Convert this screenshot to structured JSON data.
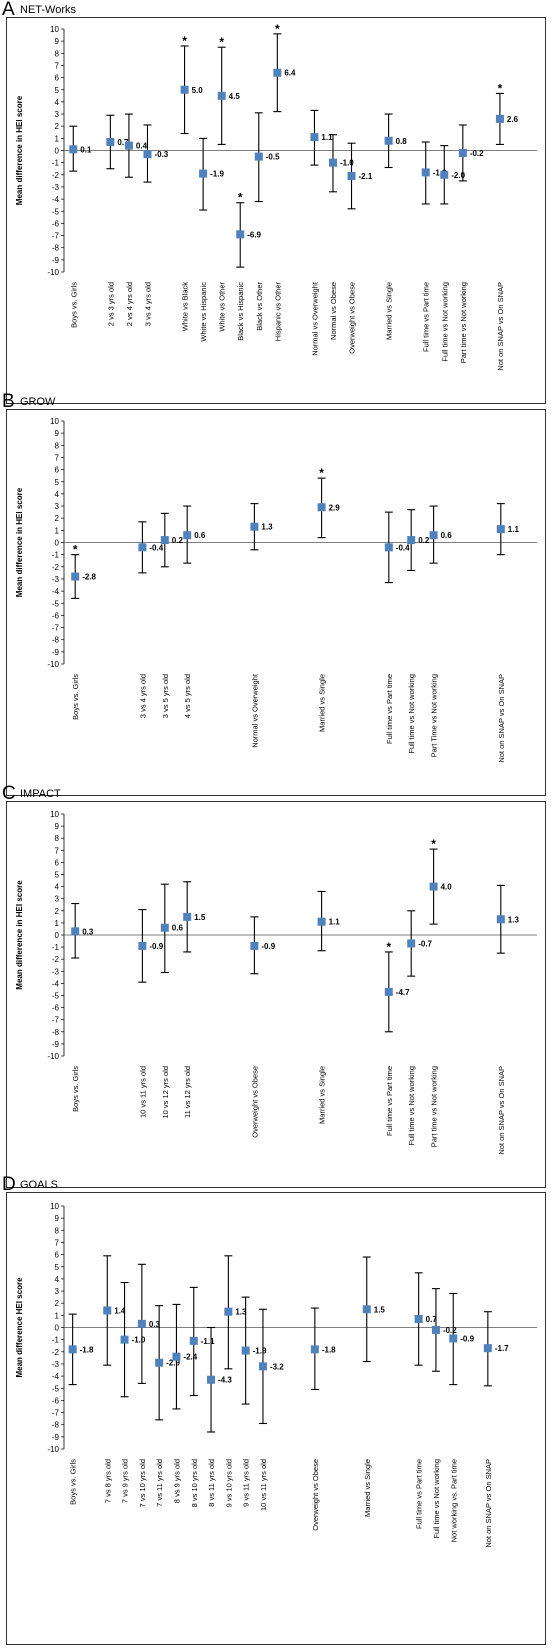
{
  "chart_data": [
    {
      "type": "scatter",
      "letter": "A",
      "title": "NET-Works",
      "ylabel": "Mean difference in HEI score",
      "ylim": [
        -10,
        10
      ],
      "yticks": [
        10,
        9,
        8,
        7,
        6,
        5,
        4,
        3,
        2,
        1,
        0,
        -1,
        -2,
        -3,
        -4,
        -5,
        -6,
        -7,
        -8,
        -9,
        -10
      ],
      "marker_color": "#4F81BD",
      "points": [
        {
          "category": "Boys vs. Girls",
          "x": 1,
          "value": 0.1,
          "label": "0.1",
          "ci": [
            -1.7,
            2.0
          ],
          "sig": false
        },
        {
          "category": "2 vs 3 yrs old",
          "x": 3,
          "value": 0.7,
          "label": "0.7",
          "ci": [
            -1.5,
            2.9
          ],
          "sig": false
        },
        {
          "category": "2 vs 4 yrs old",
          "x": 4,
          "value": 0.4,
          "label": "0.4",
          "ci": [
            -2.2,
            3.0
          ],
          "sig": false
        },
        {
          "category": "3 vs 4 yrs old",
          "x": 5,
          "value": -0.3,
          "label": "-0.3",
          "ci": [
            -2.6,
            2.1
          ],
          "sig": false
        },
        {
          "category": "White vs Black",
          "x": 7,
          "value": 5.0,
          "label": "5.0",
          "ci": [
            1.4,
            8.6
          ],
          "sig": true
        },
        {
          "category": "White vs Hispanic",
          "x": 8,
          "value": -1.9,
          "label": "-1.9",
          "ci": [
            -4.9,
            1.0
          ],
          "sig": false
        },
        {
          "category": "White vs Other",
          "x": 9,
          "value": 4.5,
          "label": "4.5",
          "ci": [
            0.5,
            8.5
          ],
          "sig": true
        },
        {
          "category": "Black vs Hispanic",
          "x": 10,
          "value": -6.9,
          "label": "-6.9",
          "ci": [
            -9.6,
            -4.3
          ],
          "sig": true
        },
        {
          "category": "Black vs Other",
          "x": 11,
          "value": -0.5,
          "label": "-0.5",
          "ci": [
            -4.2,
            3.1
          ],
          "sig": false
        },
        {
          "category": "Hispanic vs Other",
          "x": 12,
          "value": 6.4,
          "label": "6.4",
          "ci": [
            3.2,
            9.6
          ],
          "sig": true
        },
        {
          "category": "Normal vs Overweight",
          "x": 14,
          "value": 1.1,
          "label": "1.1",
          "ci": [
            -1.2,
            3.3
          ],
          "sig": false
        },
        {
          "category": "Normal vs Obese",
          "x": 15,
          "value": -1.0,
          "label": "-1.0",
          "ci": [
            -3.4,
            1.3
          ],
          "sig": false
        },
        {
          "category": "Overweight vs Obese",
          "x": 16,
          "value": -2.1,
          "label": "-2.1",
          "ci": [
            -4.8,
            0.6
          ],
          "sig": false
        },
        {
          "category": "Married vs Single",
          "x": 18,
          "value": 0.8,
          "label": "0.8",
          "ci": [
            -1.4,
            3.0
          ],
          "sig": false
        },
        {
          "category": "Full time vs Part time",
          "x": 20,
          "value": -1.8,
          "label": "-1.8",
          "ci": [
            -4.4,
            0.7
          ],
          "sig": false
        },
        {
          "category": "Full time vs Not working",
          "x": 21,
          "value": -2.0,
          "label": "-2.0",
          "ci": [
            -4.4,
            0.4
          ],
          "sig": false
        },
        {
          "category": "Part time vs Not working",
          "x": 22,
          "value": -0.2,
          "label": "-0.2",
          "ci": [
            -2.5,
            2.1
          ],
          "sig": false
        },
        {
          "category": "Not on SNAP vs On SNAP",
          "x": 24,
          "value": 2.6,
          "label": "2.6",
          "ci": [
            0.5,
            4.7
          ],
          "sig": true
        }
      ]
    },
    {
      "type": "scatter",
      "letter": "B",
      "title": "GROW",
      "ylabel": "Mean difference in HEI score",
      "ylim": [
        -10,
        10
      ],
      "yticks": [
        10,
        9,
        8,
        7,
        6,
        5,
        4,
        3,
        2,
        1,
        0,
        -1,
        -2,
        -3,
        -4,
        -5,
        -6,
        -7,
        -8,
        -9,
        -10
      ],
      "marker_color": "#4F81BD",
      "points": [
        {
          "category": "Boys vs. Girls",
          "x": 1,
          "value": -2.8,
          "label": "-2.8",
          "ci": [
            -4.6,
            -1.0
          ],
          "sig": true
        },
        {
          "category": "3 vs 4 yrs old",
          "x": 4,
          "value": -0.4,
          "label": "-0.4",
          "ci": [
            -2.5,
            1.7
          ],
          "sig": false
        },
        {
          "category": "3 vs 5 yrs old",
          "x": 5,
          "value": 0.2,
          "label": "0.2",
          "ci": [
            -2.0,
            2.4
          ],
          "sig": false
        },
        {
          "category": "4 vs 5 yrs old",
          "x": 6,
          "value": 0.6,
          "label": "0.6",
          "ci": [
            -1.7,
            3.0
          ],
          "sig": false
        },
        {
          "category": "Normal vs Overweight",
          "x": 9,
          "value": 1.3,
          "label": "1.3",
          "ci": [
            -0.6,
            3.2
          ],
          "sig": false
        },
        {
          "category": "Married vs Single",
          "x": 12,
          "value": 2.9,
          "label": "2.9",
          "ci": [
            0.4,
            5.3
          ],
          "sig": true
        },
        {
          "category": "Full time vs Part time",
          "x": 15,
          "value": -0.4,
          "label": "-0.4",
          "ci": [
            -3.3,
            2.5
          ],
          "sig": false
        },
        {
          "category": "Full time vs Not working",
          "x": 16,
          "value": 0.2,
          "label": "0.2",
          "ci": [
            -2.3,
            2.7
          ],
          "sig": false
        },
        {
          "category": "Part Time vs Not working",
          "x": 17,
          "value": 0.6,
          "label": "0.6",
          "ci": [
            -1.7,
            3.0
          ],
          "sig": false
        },
        {
          "category": "Not on SNAP vs On SNAP",
          "x": 20,
          "value": 1.1,
          "label": "1.1",
          "ci": [
            -1.0,
            3.2
          ],
          "sig": false
        }
      ]
    },
    {
      "type": "scatter",
      "letter": "C",
      "title": "IMPACT",
      "ylabel": "Mean difference in HEI score",
      "ylim": [
        -10,
        10
      ],
      "yticks": [
        10,
        9,
        8,
        7,
        6,
        5,
        4,
        3,
        2,
        1,
        0,
        -1,
        -2,
        -3,
        -4,
        -5,
        -6,
        -7,
        -8,
        -9,
        -10
      ],
      "marker_color": "#4F81BD",
      "points": [
        {
          "category": "Boys vs. Girls",
          "x": 1,
          "value": 0.3,
          "label": "0.3",
          "ci": [
            -1.9,
            2.6
          ],
          "sig": false
        },
        {
          "category": "10 vs 11 yrs old",
          "x": 4,
          "value": -0.9,
          "label": "-0.9",
          "ci": [
            -3.9,
            2.1
          ],
          "sig": false
        },
        {
          "category": "10 vs 12 yrs old",
          "x": 5,
          "value": 0.6,
          "label": "0.6",
          "ci": [
            -3.1,
            4.2
          ],
          "sig": false
        },
        {
          "category": "11 vs 12 yrs old",
          "x": 6,
          "value": 1.5,
          "label": "1.5",
          "ci": [
            -1.4,
            4.4
          ],
          "sig": false
        },
        {
          "category": "Overweight vs Obese",
          "x": 9,
          "value": -0.9,
          "label": "-0.9",
          "ci": [
            -3.2,
            1.5
          ],
          "sig": false
        },
        {
          "category": "Married vs Single",
          "x": 12,
          "value": 1.1,
          "label": "1.1",
          "ci": [
            -1.3,
            3.6
          ],
          "sig": false
        },
        {
          "category": "Full time vs Part time",
          "x": 15,
          "value": -4.7,
          "label": "-4.7",
          "ci": [
            -8.0,
            -1.4
          ],
          "sig": true
        },
        {
          "category": "Full time vs Not working",
          "x": 16,
          "value": -0.7,
          "label": "-0.7",
          "ci": [
            -3.4,
            2.0
          ],
          "sig": false
        },
        {
          "category": "Part time vs Not working",
          "x": 17,
          "value": 4.0,
          "label": "4.0",
          "ci": [
            0.9,
            7.1
          ],
          "sig": true
        },
        {
          "category": "Not on SNAP vs On SNAP",
          "x": 20,
          "value": 1.3,
          "label": "1.3",
          "ci": [
            -1.5,
            4.1
          ],
          "sig": false
        }
      ]
    },
    {
      "type": "scatter",
      "letter": "D",
      "title": "GOALS",
      "ylabel": "Mean difference HEI score",
      "ylim": [
        -10,
        10
      ],
      "yticks": [
        10,
        9,
        8,
        7,
        6,
        5,
        4,
        3,
        2,
        1,
        0,
        -1,
        -2,
        -3,
        -4,
        -5,
        -6,
        -7,
        -8,
        -9,
        -10
      ],
      "marker_color": "#4F81BD",
      "points": [
        {
          "category": "Boys vs. Girls",
          "x": 1,
          "value": -1.8,
          "label": "-1.8",
          "ci": [
            -4.7,
            1.1
          ],
          "sig": false
        },
        {
          "category": "7 vs 8 yrs old",
          "x": 3,
          "value": 1.4,
          "label": "1.4",
          "ci": [
            -3.1,
            5.9
          ],
          "sig": false
        },
        {
          "category": "7 vs 9 yrs old",
          "x": 4,
          "value": -1.0,
          "label": "-1.0",
          "ci": [
            -5.7,
            3.7
          ],
          "sig": false
        },
        {
          "category": "7 vs 10 yrs old",
          "x": 5,
          "value": 0.3,
          "label": "0.3",
          "ci": [
            -4.6,
            5.2
          ],
          "sig": false
        },
        {
          "category": "7 vs 11 yrs old",
          "x": 6,
          "value": -2.9,
          "label": "-2.9",
          "ci": [
            -7.6,
            1.8
          ],
          "sig": false
        },
        {
          "category": "8 vs 9 yrs old",
          "x": 7,
          "value": -2.4,
          "label": "-2.4",
          "ci": [
            -6.7,
            1.9
          ],
          "sig": false
        },
        {
          "category": "8 vs 10 yrs old",
          "x": 8,
          "value": -1.1,
          "label": "-1.1",
          "ci": [
            -5.6,
            3.3
          ],
          "sig": false
        },
        {
          "category": "8 vs 11 yrs old",
          "x": 9,
          "value": -4.3,
          "label": "-4.3",
          "ci": [
            -8.6,
            0.0
          ],
          "sig": false
        },
        {
          "category": "9 vs 10 yrs old",
          "x": 10,
          "value": 1.3,
          "label": "1.3",
          "ci": [
            -3.4,
            5.9
          ],
          "sig": false
        },
        {
          "category": "9 vs 11 yrs old",
          "x": 11,
          "value": -1.9,
          "label": "-1.9",
          "ci": [
            -6.3,
            2.5
          ],
          "sig": false
        },
        {
          "category": "10 vs 11 yrs old",
          "x": 12,
          "value": -3.2,
          "label": "-3.2",
          "ci": [
            -7.9,
            1.5
          ],
          "sig": false
        },
        {
          "category": "Overweight vs Obese",
          "x": 15,
          "value": -1.8,
          "label": "-1.8",
          "ci": [
            -5.1,
            1.6
          ],
          "sig": false
        },
        {
          "category": "Married vs Single",
          "x": 18,
          "value": 1.5,
          "label": "1.5",
          "ci": [
            -2.8,
            5.8
          ],
          "sig": false
        },
        {
          "category": "Full time vs Part time",
          "x": 21,
          "value": 0.7,
          "label": "0.7",
          "ci": [
            -3.1,
            4.5
          ],
          "sig": false
        },
        {
          "category": "Full time vs Not working",
          "x": 22,
          "value": -0.2,
          "label": "-0.2",
          "ci": [
            -3.6,
            3.2
          ],
          "sig": false
        },
        {
          "category": "Not working vs. Part time",
          "x": 23,
          "value": -0.9,
          "label": "-0.9",
          "ci": [
            -4.7,
            2.8
          ],
          "sig": false
        },
        {
          "category": "Not on SNAP vs On SNAP",
          "x": 25,
          "value": -1.7,
          "label": "-1.7",
          "ci": [
            -4.8,
            1.3
          ],
          "sig": false
        }
      ]
    }
  ]
}
